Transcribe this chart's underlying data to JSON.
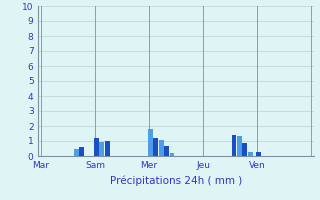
{
  "title": "",
  "xlabel": "Précipitations 24h ( mm )",
  "ylabel": "",
  "ylim": [
    0,
    10
  ],
  "yticks": [
    0,
    1,
    2,
    3,
    4,
    5,
    6,
    7,
    8,
    9,
    10
  ],
  "background_color": "#dff4f4",
  "bar_color_dark": "#1a4fc4",
  "bar_color_light": "#4d9ee8",
  "grid_color": "#b8d4d4",
  "axis_label_color": "#3333cc",
  "tick_label_color": "#3333cc",
  "day_labels": [
    "Mar",
    "Sam",
    "Mer",
    "Jeu",
    "Ven"
  ],
  "day_line_positions": [
    0,
    40,
    80,
    120,
    160,
    200
  ],
  "bars": [
    {
      "x": 26,
      "height": 0.45,
      "color": "light"
    },
    {
      "x": 30,
      "height": 0.6,
      "color": "dark"
    },
    {
      "x": 41,
      "height": 1.2,
      "color": "dark"
    },
    {
      "x": 45,
      "height": 0.95,
      "color": "light"
    },
    {
      "x": 49,
      "height": 1.0,
      "color": "dark"
    },
    {
      "x": 81,
      "height": 1.8,
      "color": "light"
    },
    {
      "x": 85,
      "height": 1.2,
      "color": "dark"
    },
    {
      "x": 89,
      "height": 1.1,
      "color": "light"
    },
    {
      "x": 93,
      "height": 0.65,
      "color": "dark"
    },
    {
      "x": 97,
      "height": 0.2,
      "color": "light"
    },
    {
      "x": 143,
      "height": 1.4,
      "color": "dark"
    },
    {
      "x": 147,
      "height": 1.35,
      "color": "light"
    },
    {
      "x": 151,
      "height": 0.9,
      "color": "dark"
    },
    {
      "x": 155,
      "height": 0.3,
      "color": "light"
    },
    {
      "x": 161,
      "height": 0.3,
      "color": "dark"
    }
  ],
  "xlim": [
    -2,
    202
  ],
  "bar_width": 3.5
}
